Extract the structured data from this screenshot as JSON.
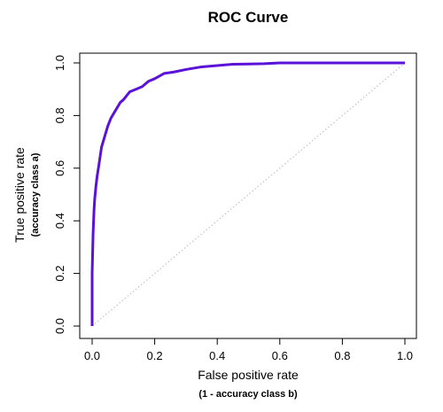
{
  "chart_data": {
    "type": "line",
    "title": "ROC Curve",
    "xlabel": "False positive rate",
    "xlabel_sub": "(1 - accuracy class b)",
    "ylabel": "True positive rate",
    "ylabel_sub": "(accuracy class a)",
    "xlim": [
      0,
      1
    ],
    "ylim": [
      0,
      1
    ],
    "grid": false,
    "x_ticks": [
      "0.0",
      "0.2",
      "0.4",
      "0.6",
      "0.8",
      "1.0"
    ],
    "y_ticks": [
      "0.0",
      "0.2",
      "0.4",
      "0.6",
      "0.8",
      "1.0"
    ],
    "series": [
      {
        "color": "#5a12d8",
        "style": "solid",
        "x": [
          0.0,
          0.0,
          0.003,
          0.006,
          0.008,
          0.012,
          0.016,
          0.02,
          0.025,
          0.03,
          0.04,
          0.05,
          0.06,
          0.07,
          0.08,
          0.09,
          0.1,
          0.12,
          0.14,
          0.16,
          0.18,
          0.2,
          0.23,
          0.26,
          0.3,
          0.35,
          0.4,
          0.45,
          0.5,
          0.55,
          0.6,
          0.7,
          0.8,
          0.9,
          1.0
        ],
        "y": [
          0.0,
          0.2,
          0.35,
          0.44,
          0.48,
          0.53,
          0.57,
          0.6,
          0.64,
          0.68,
          0.72,
          0.76,
          0.79,
          0.81,
          0.83,
          0.85,
          0.86,
          0.89,
          0.9,
          0.91,
          0.93,
          0.94,
          0.96,
          0.965,
          0.975,
          0.985,
          0.99,
          0.995,
          0.996,
          0.997,
          1.0,
          1.0,
          1.0,
          1.0,
          1.0
        ]
      },
      {
        "color": "#b8b8b8",
        "style": "dotted",
        "x": [
          0.0,
          1.0
        ],
        "y": [
          0.0,
          1.0
        ]
      }
    ]
  }
}
